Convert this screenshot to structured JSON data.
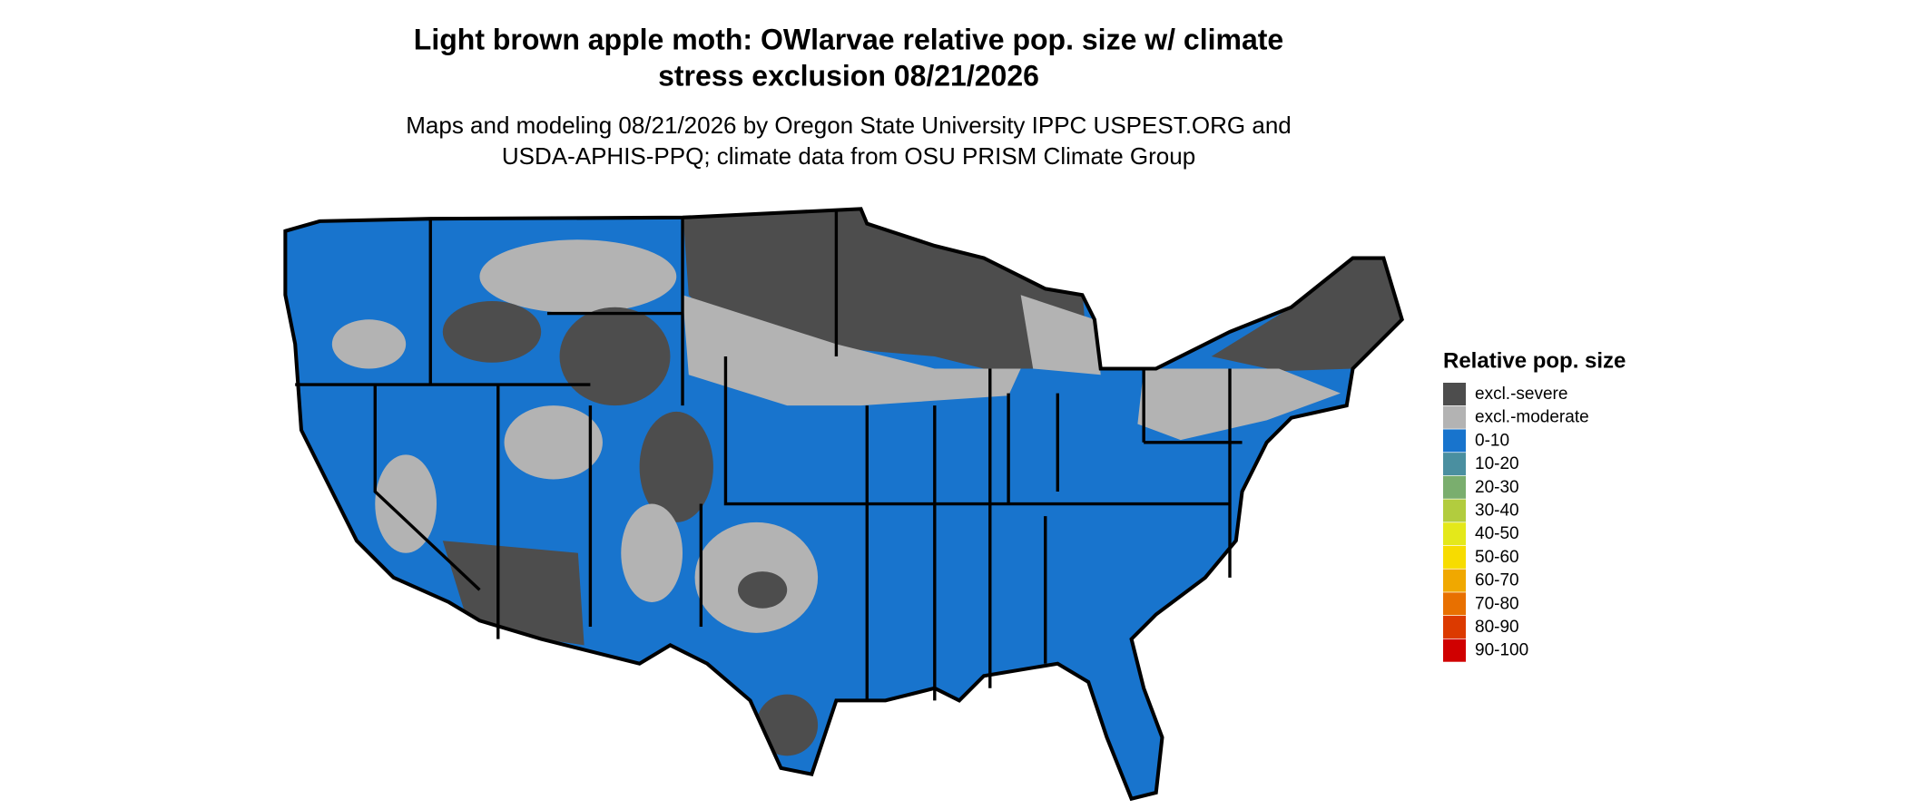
{
  "title": [
    "Light brown apple moth: OWlarvae relative pop. size w/ climate",
    "stress exclusion 08/21/2026"
  ],
  "subtitle": [
    "Maps and modeling 08/21/2026 by Oregon State University IPPC USPEST.ORG and",
    "USDA-APHIS-PPQ; climate data from OSU PRISM Climate Group"
  ],
  "legend": {
    "title": "Relative pop. size",
    "items": [
      {
        "label": "excl.-severe",
        "color": "#4d4d4d"
      },
      {
        "label": "excl.-moderate",
        "color": "#b3b3b3"
      },
      {
        "label": "0-10",
        "color": "#1874cd"
      },
      {
        "label": "10-20",
        "color": "#4a8fa0"
      },
      {
        "label": "20-30",
        "color": "#7aae6e"
      },
      {
        "label": "30-40",
        "color": "#b2cc3e"
      },
      {
        "label": "40-50",
        "color": "#e4e81a"
      },
      {
        "label": "50-60",
        "color": "#f7dc00"
      },
      {
        "label": "60-70",
        "color": "#f0a800"
      },
      {
        "label": "70-80",
        "color": "#e87000"
      },
      {
        "label": "80-90",
        "color": "#dc3a00"
      },
      {
        "label": "90-100",
        "color": "#d00000"
      }
    ]
  }
}
